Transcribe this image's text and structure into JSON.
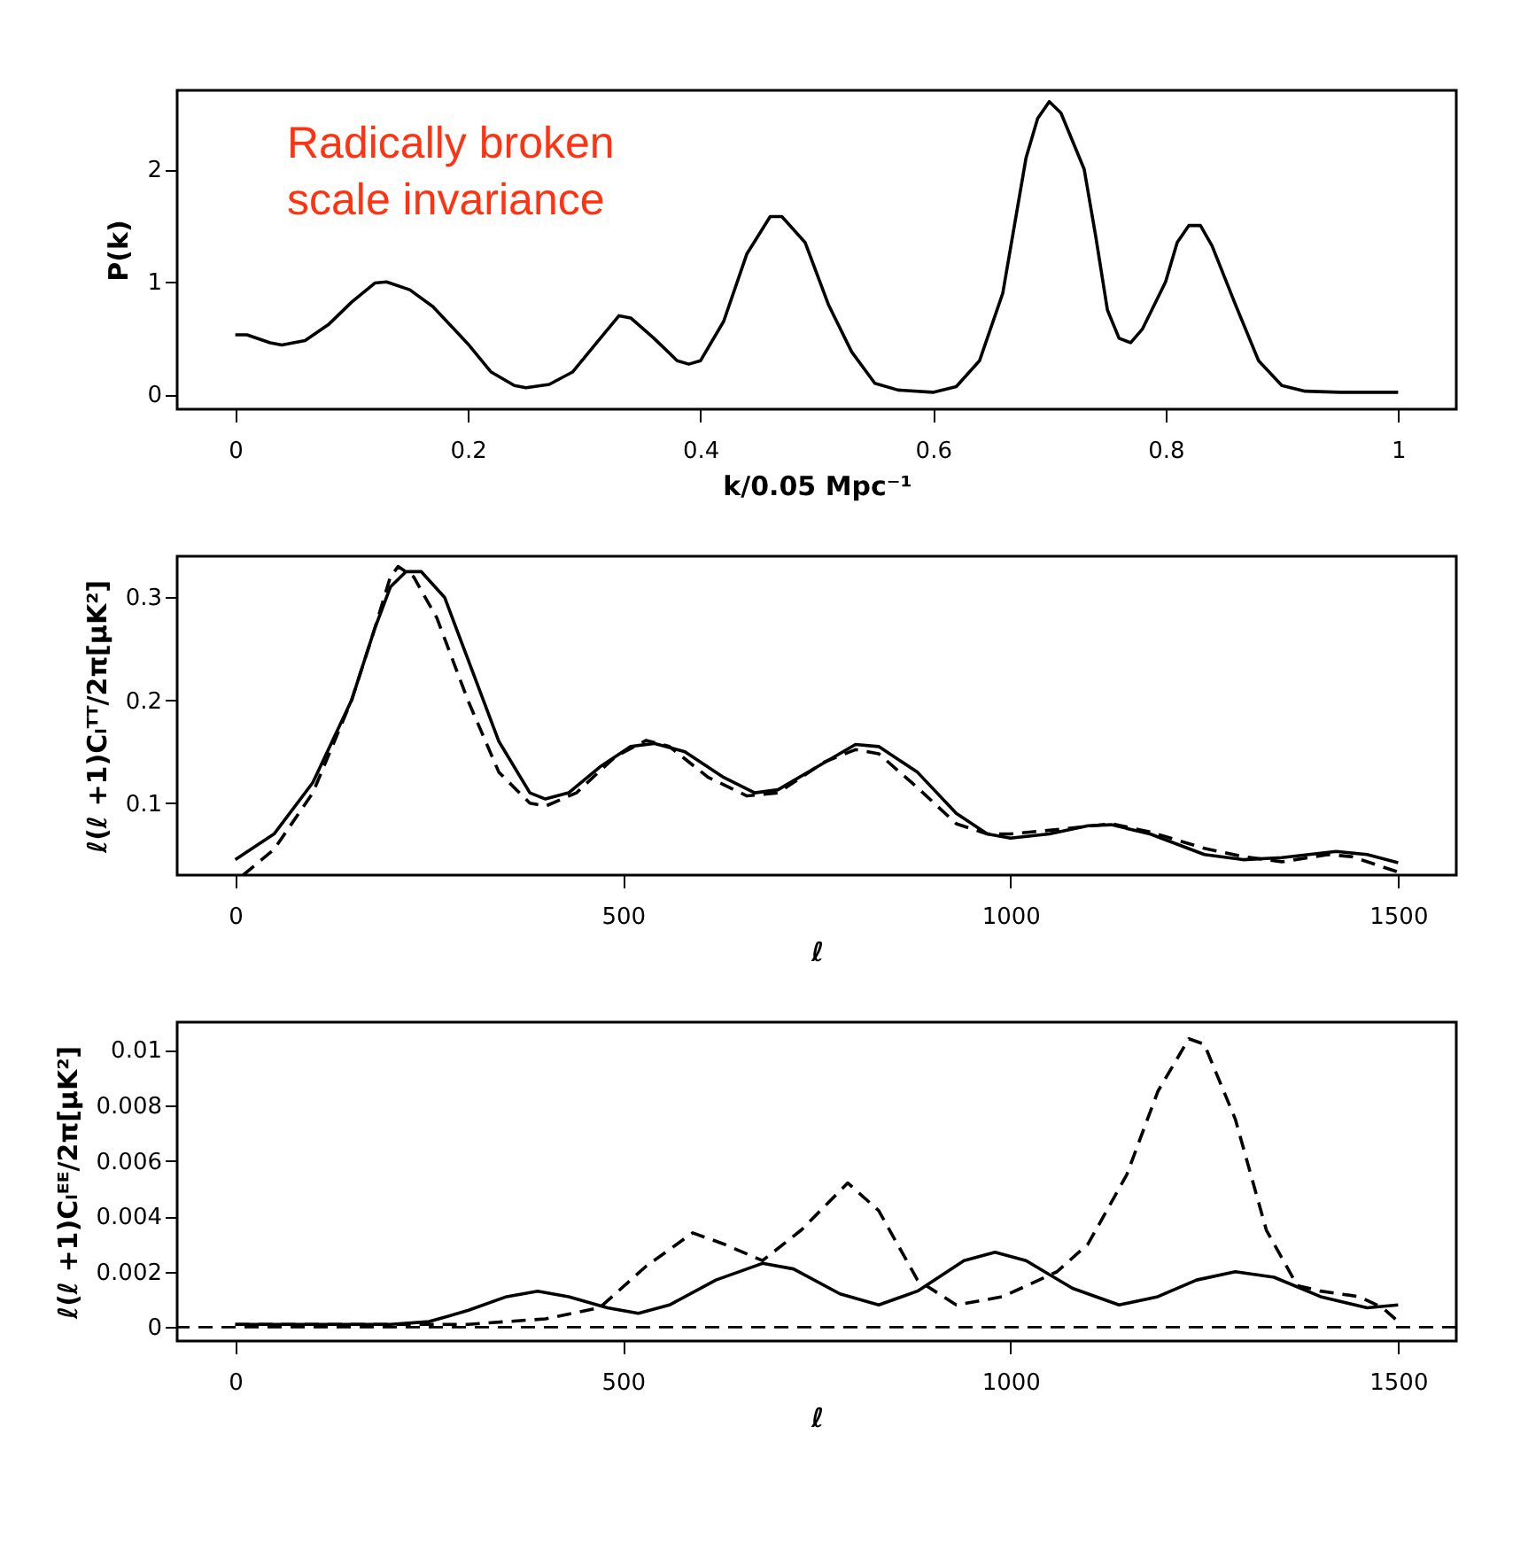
{
  "chart_data": [
    {
      "type": "line",
      "xlabel": "k/0.05 Mpc⁻¹",
      "ylabel": "P(k)",
      "xlim": [
        -0.05,
        1.05
      ],
      "ylim": [
        -0.13,
        2.7
      ],
      "xticks": [
        0,
        0.2,
        0.4,
        0.6,
        0.8,
        1
      ],
      "yticks": [
        0,
        1,
        2
      ],
      "grid": false,
      "marker": "none",
      "annotations": [
        "Radically broken scale invariance"
      ],
      "series": [
        {
          "color": "#000000",
          "line_style": "solid",
          "x": [
            0,
            0.01,
            0.03,
            0.04,
            0.06,
            0.08,
            0.1,
            0.12,
            0.13,
            0.15,
            0.17,
            0.2,
            0.22,
            0.24,
            0.25,
            0.27,
            0.29,
            0.31,
            0.33,
            0.34,
            0.36,
            0.38,
            0.39,
            0.4,
            0.42,
            0.44,
            0.46,
            0.47,
            0.49,
            0.51,
            0.53,
            0.55,
            0.57,
            0.6,
            0.62,
            0.64,
            0.66,
            0.68,
            0.69,
            0.7,
            0.71,
            0.73,
            0.74,
            0.75,
            0.76,
            0.77,
            0.78,
            0.8,
            0.81,
            0.82,
            0.83,
            0.84,
            0.86,
            0.88,
            0.9,
            0.92,
            0.95,
            1
          ],
          "values": [
            0.53,
            0.53,
            0.46,
            0.44,
            0.48,
            0.62,
            0.82,
            0.99,
            1.0,
            0.93,
            0.78,
            0.45,
            0.2,
            0.08,
            0.06,
            0.09,
            0.2,
            0.45,
            0.7,
            0.68,
            0.5,
            0.3,
            0.27,
            0.3,
            0.65,
            1.25,
            1.58,
            1.58,
            1.35,
            0.8,
            0.38,
            0.1,
            0.04,
            0.02,
            0.07,
            0.3,
            0.9,
            2.1,
            2.45,
            2.6,
            2.5,
            2.0,
            1.4,
            0.75,
            0.5,
            0.46,
            0.58,
            1.0,
            1.35,
            1.5,
            1.5,
            1.32,
            0.8,
            0.3,
            0.08,
            0.03,
            0.02,
            0.02
          ]
        }
      ]
    },
    {
      "type": "line",
      "xlabel": "ℓ",
      "ylabel": "ℓ(ℓ +1)Cₗᵀᵀ/2π[μK²]",
      "xlim": [
        -75,
        1575
      ],
      "ylim": [
        0.03,
        0.34
      ],
      "xticks": [
        0,
        500,
        1000,
        1500
      ],
      "yticks": [
        0.1,
        0.2,
        0.3
      ],
      "grid": false,
      "marker": "none",
      "series": [
        {
          "color": "#000000",
          "line_style": "solid",
          "x": [
            0,
            50,
            100,
            150,
            180,
            200,
            220,
            240,
            270,
            300,
            340,
            380,
            400,
            430,
            470,
            510,
            540,
            580,
            630,
            670,
            700,
            750,
            800,
            830,
            880,
            930,
            970,
            1000,
            1050,
            1100,
            1130,
            1180,
            1250,
            1300,
            1350,
            1420,
            1460,
            1500
          ],
          "values": [
            0.045,
            0.07,
            0.12,
            0.2,
            0.27,
            0.31,
            0.325,
            0.325,
            0.3,
            0.24,
            0.16,
            0.11,
            0.104,
            0.11,
            0.135,
            0.155,
            0.158,
            0.15,
            0.125,
            0.11,
            0.113,
            0.135,
            0.157,
            0.155,
            0.13,
            0.09,
            0.07,
            0.066,
            0.07,
            0.078,
            0.079,
            0.07,
            0.05,
            0.045,
            0.047,
            0.053,
            0.05,
            0.042
          ]
        },
        {
          "color": "#000000",
          "line_style": "dashed",
          "x": [
            10,
            50,
            100,
            150,
            180,
            200,
            210,
            230,
            260,
            300,
            340,
            380,
            400,
            440,
            490,
            530,
            560,
            610,
            660,
            700,
            760,
            800,
            830,
            880,
            930,
            970,
            1000,
            1070,
            1130,
            1180,
            1250,
            1300,
            1350,
            1410,
            1440,
            1500
          ],
          "values": [
            0.03,
            0.055,
            0.11,
            0.2,
            0.27,
            0.32,
            0.33,
            0.32,
            0.28,
            0.2,
            0.13,
            0.1,
            0.097,
            0.11,
            0.145,
            0.161,
            0.155,
            0.125,
            0.107,
            0.11,
            0.14,
            0.152,
            0.148,
            0.115,
            0.08,
            0.07,
            0.07,
            0.075,
            0.08,
            0.072,
            0.056,
            0.048,
            0.043,
            0.05,
            0.048,
            0.033
          ]
        }
      ]
    },
    {
      "type": "line",
      "xlabel": "ℓ",
      "ylabel": "ℓ(ℓ +1)Cₗᴱᴱ/2π[μK²]",
      "xlim": [
        -75,
        1575
      ],
      "ylim": [
        -0.0005,
        0.011
      ],
      "xticks": [
        0,
        500,
        1000,
        1500
      ],
      "yticks": [
        0,
        0.002,
        0.004,
        0.006,
        0.008,
        0.01
      ],
      "grid": false,
      "marker": "none",
      "ref_lines": [
        {
          "axis": "y",
          "value": 0,
          "line_style": "dashed",
          "color": "#000000"
        }
      ],
      "series": [
        {
          "color": "#000000",
          "line_style": "solid",
          "x": [
            0,
            200,
            250,
            300,
            350,
            390,
            430,
            480,
            520,
            560,
            620,
            680,
            720,
            780,
            830,
            880,
            940,
            980,
            1020,
            1080,
            1140,
            1190,
            1240,
            1290,
            1340,
            1400,
            1460,
            1500
          ],
          "values": [
            0.0001,
            0.0001,
            0.0002,
            0.0006,
            0.0011,
            0.0013,
            0.0011,
            0.0007,
            0.0005,
            0.0008,
            0.0017,
            0.0023,
            0.0021,
            0.0012,
            0.0008,
            0.0013,
            0.0024,
            0.0027,
            0.0024,
            0.0014,
            0.0008,
            0.0011,
            0.0017,
            0.002,
            0.0018,
            0.0011,
            0.0007,
            0.0008
          ]
        },
        {
          "color": "#000000",
          "line_style": "dashed",
          "x": [
            0,
            300,
            400,
            470,
            530,
            590,
            630,
            680,
            730,
            790,
            830,
            880,
            930,
            990,
            1060,
            1100,
            1150,
            1190,
            1230,
            1250,
            1290,
            1330,
            1370,
            1400,
            1450,
            1480,
            1500
          ],
          "values": [
            0.0001,
            0.0001,
            0.0003,
            0.0007,
            0.0022,
            0.0034,
            0.003,
            0.0024,
            0.0035,
            0.0052,
            0.0042,
            0.0017,
            0.0008,
            0.0011,
            0.002,
            0.003,
            0.0055,
            0.0085,
            0.0104,
            0.0102,
            0.0075,
            0.0035,
            0.0015,
            0.0013,
            0.0011,
            0.0007,
            0.0002
          ]
        }
      ]
    }
  ]
}
